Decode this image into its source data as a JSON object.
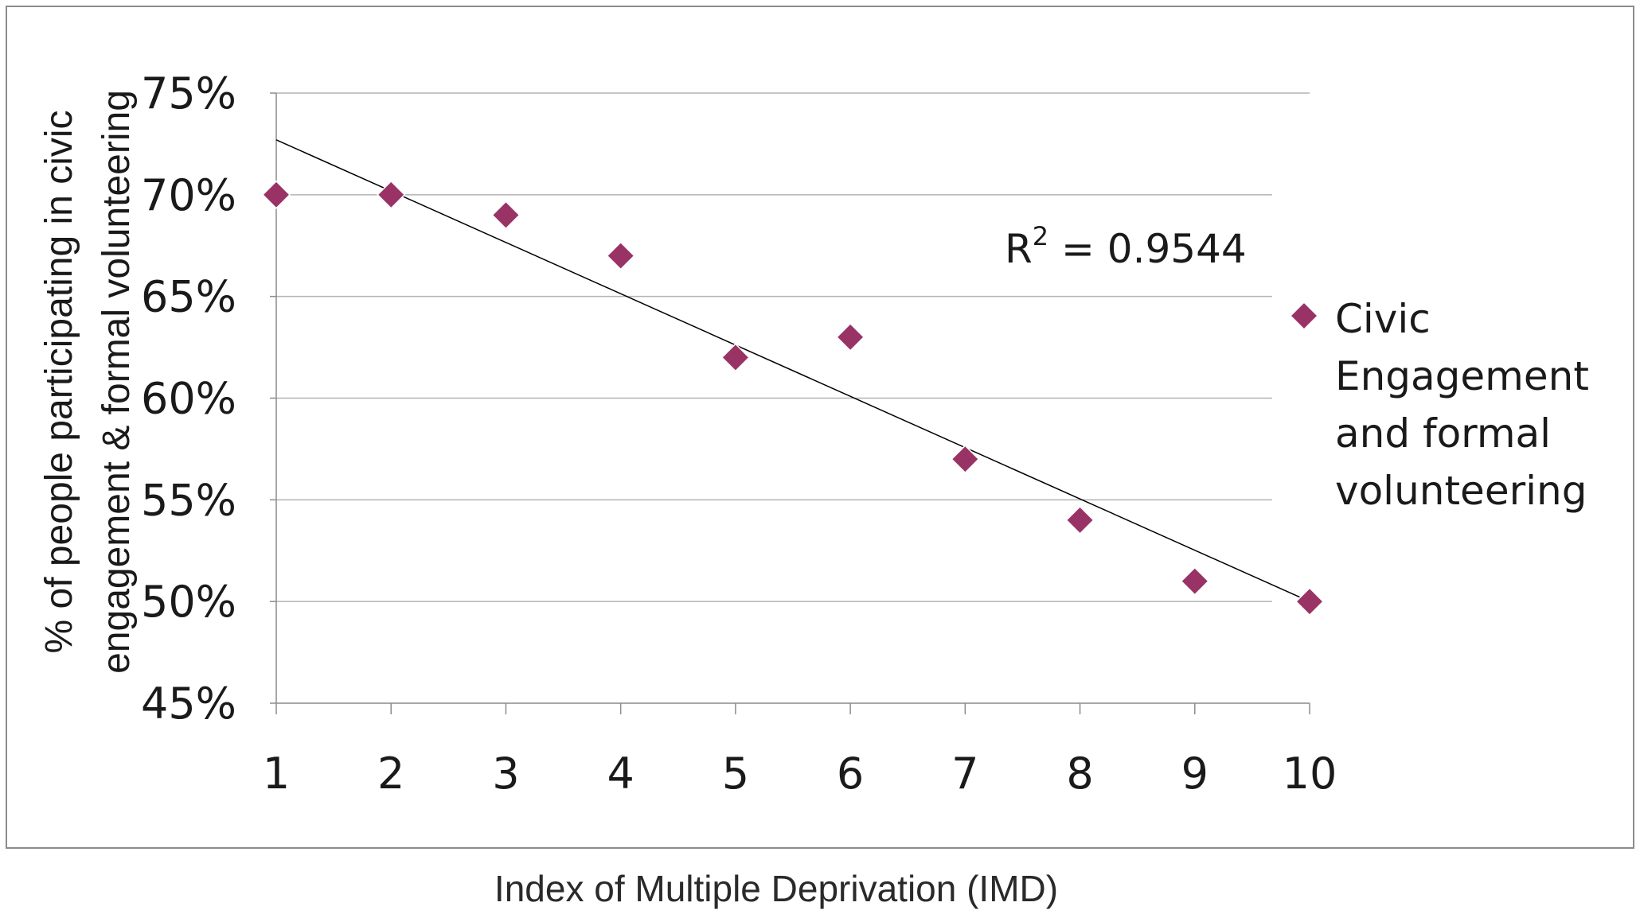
{
  "chart_data": {
    "type": "scatter",
    "title": "",
    "xlabel": "Index of Multiple Deprivation (IMD)",
    "ylabel_lines": [
      "% of people participating in civic",
      "engagement  & formal volunteering"
    ],
    "x_ticks": [
      "1",
      "2",
      "3",
      "4",
      "5",
      "6",
      "7",
      "8",
      "9",
      "10"
    ],
    "y_ticks": [
      "45%",
      "50%",
      "55%",
      "60%",
      "65%",
      "70%",
      "75%"
    ],
    "xlim": [
      1,
      10
    ],
    "ylim": [
      0.45,
      0.75
    ],
    "grid": "horizontal",
    "legend_position": "right",
    "series": [
      {
        "name": "Civic Engagement and formal volunteering",
        "name_lines": [
          "Civic",
          "Engagement",
          "and formal",
          "volunteering"
        ],
        "color": "#993366",
        "marker": "diamond",
        "x": [
          1,
          2,
          3,
          4,
          5,
          6,
          7,
          8,
          9,
          10
        ],
        "y": [
          0.7,
          0.7,
          0.69,
          0.67,
          0.62,
          0.63,
          0.57,
          0.54,
          0.51,
          0.5
        ]
      }
    ],
    "trendline": {
      "type": "linear",
      "start": [
        1,
        0.727
      ],
      "end": [
        10,
        0.5
      ],
      "color": "#000000",
      "r2_label": {
        "prefix": "R",
        "superscript": "2",
        "suffix": " = 0.9544"
      }
    }
  }
}
